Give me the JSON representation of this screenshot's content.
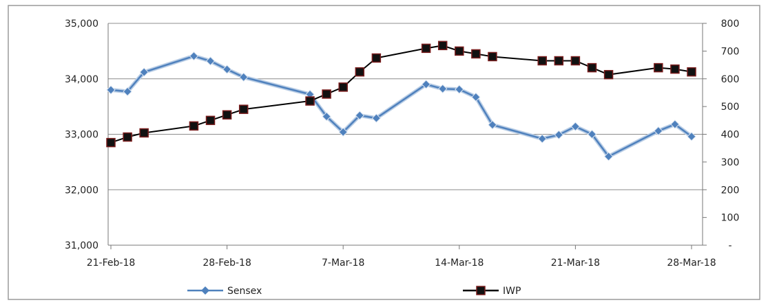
{
  "chart_data": {
    "type": "line",
    "title": "",
    "xlabel": "",
    "ylabel": "",
    "x_ticks": [
      "21-Feb-18",
      "28-Feb-18",
      "7-Mar-18",
      "14-Mar-18",
      "21-Mar-18",
      "28-Mar-18"
    ],
    "y_left": {
      "range": [
        31000,
        35000
      ],
      "ticks": [
        31000,
        32000,
        33000,
        34000,
        35000
      ],
      "tick_labels": [
        "31,000",
        "32,000",
        "33,000",
        "34,000",
        "35,000"
      ]
    },
    "y_right": {
      "range": [
        0,
        800
      ],
      "ticks": [
        0,
        100,
        200,
        300,
        400,
        500,
        600,
        700,
        800
      ],
      "tick_labels": [
        "-",
        "100",
        "200",
        "300",
        "400",
        "500",
        "600",
        "700",
        "800"
      ]
    },
    "grid": "horizontal",
    "legend_position": "bottom",
    "x_domain": [
      "2018-02-21",
      "2018-03-28"
    ],
    "series": [
      {
        "name": "Sensex",
        "axis": "left",
        "color": "#4f81bd",
        "marker": "diamond",
        "points": [
          [
            "2018-02-21",
            33800
          ],
          [
            "2018-02-22",
            33770
          ],
          [
            "2018-02-23",
            34120
          ],
          [
            "2018-02-26",
            34410
          ],
          [
            "2018-02-27",
            34320
          ],
          [
            "2018-02-28",
            34170
          ],
          [
            "2018-03-01",
            34030
          ],
          [
            "2018-03-05",
            33720
          ],
          [
            "2018-03-06",
            33320
          ],
          [
            "2018-03-07",
            33040
          ],
          [
            "2018-03-08",
            33340
          ],
          [
            "2018-03-09",
            33290
          ],
          [
            "2018-03-12",
            33900
          ],
          [
            "2018-03-13",
            33820
          ],
          [
            "2018-03-14",
            33810
          ],
          [
            "2018-03-15",
            33670
          ],
          [
            "2018-03-16",
            33170
          ],
          [
            "2018-03-19",
            32920
          ],
          [
            "2018-03-20",
            32990
          ],
          [
            "2018-03-21",
            33140
          ],
          [
            "2018-03-22",
            33000
          ],
          [
            "2018-03-23",
            32600
          ],
          [
            "2018-03-26",
            33060
          ],
          [
            "2018-03-27",
            33180
          ],
          [
            "2018-03-28",
            32960
          ]
        ]
      },
      {
        "name": "IWP",
        "axis": "right",
        "color": "#000000",
        "marker": "square",
        "points": [
          [
            "2018-02-21",
            370
          ],
          [
            "2018-02-22",
            390
          ],
          [
            "2018-02-23",
            405
          ],
          [
            "2018-02-26",
            430
          ],
          [
            "2018-02-27",
            450
          ],
          [
            "2018-02-28",
            470
          ],
          [
            "2018-03-01",
            490
          ],
          [
            "2018-03-05",
            520
          ],
          [
            "2018-03-06",
            545
          ],
          [
            "2018-03-07",
            570
          ],
          [
            "2018-03-08",
            625
          ],
          [
            "2018-03-09",
            675
          ],
          [
            "2018-03-12",
            710
          ],
          [
            "2018-03-13",
            720
          ],
          [
            "2018-03-14",
            700
          ],
          [
            "2018-03-15",
            690
          ],
          [
            "2018-03-16",
            680
          ],
          [
            "2018-03-19",
            665
          ],
          [
            "2018-03-20",
            665
          ],
          [
            "2018-03-21",
            665
          ],
          [
            "2018-03-22",
            640
          ],
          [
            "2018-03-23",
            615
          ],
          [
            "2018-03-26",
            640
          ],
          [
            "2018-03-27",
            635
          ],
          [
            "2018-03-28",
            625
          ]
        ]
      }
    ]
  }
}
